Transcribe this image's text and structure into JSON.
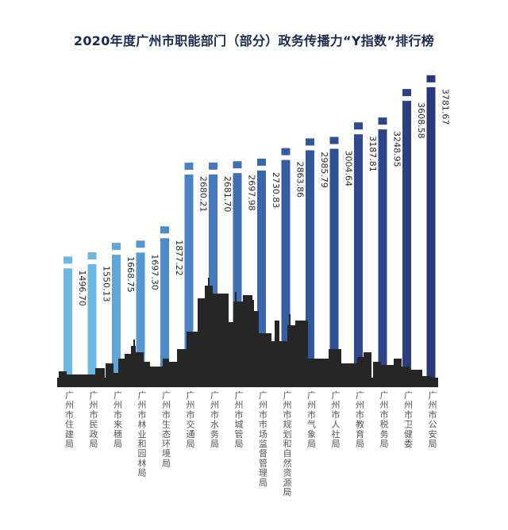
{
  "chart_data": {
    "type": "bar",
    "title": "2020年度广州市职能部门（部分）政务传播力“Y指数”排行榜",
    "categories": [
      "广州市住建局",
      "广州市民政局",
      "广州市来穗局",
      "广州市林业和园林局",
      "广州市生态环境局",
      "广州市交通局",
      "广州市水务局",
      "广州市城管局",
      "广州市市场监督管理局",
      "广州市规划和自然资源局",
      "广州市气象局",
      "广州市人社局",
      "广州市教育局",
      "广州市税务局",
      "广州市卫健委",
      "广州市公安局"
    ],
    "value_labels": [
      "1496.70",
      "1550.13",
      "1668.75",
      "1697.30",
      "1877.22",
      "2680.21",
      "2681.70",
      "2697.98",
      "2730.83",
      "2863.86",
      "2985.79",
      "3004.64",
      "3187.81",
      "3248.95",
      "3608.58",
      "3781.67"
    ],
    "values": [
      1496.7,
      1550.13,
      1668.75,
      1697.3,
      1877.22,
      2680.21,
      2681.7,
      2697.98,
      2730.83,
      2863.86,
      2985.79,
      3004.64,
      3187.81,
      3248.95,
      3608.58,
      3781.67
    ],
    "colors": [
      "#6cb8e2",
      "#6cb8e2",
      "#5fa6d8",
      "#5698cf",
      "#4e8cc7",
      "#4a83c2",
      "#4479bb",
      "#3f70b3",
      "#3a67ab",
      "#355ea3",
      "#30569c",
      "#2d4f94",
      "#2f4a8e",
      "#2e4488",
      "#2d3e82",
      "#2b377b"
    ],
    "ylim": [
      0,
      4000
    ],
    "grid": false,
    "legend": "none"
  }
}
